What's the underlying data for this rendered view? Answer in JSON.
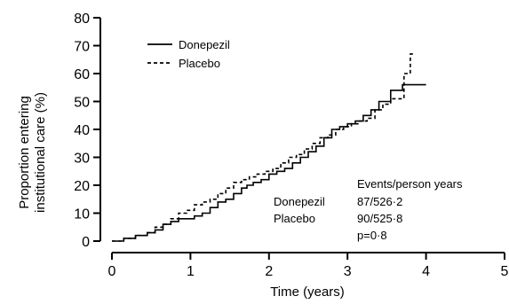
{
  "chart_data": {
    "type": "line",
    "step": true,
    "xlabel": "Time (years)",
    "ylabel_lines": [
      "Proportion entering",
      "institutional care (%)"
    ],
    "xlim": [
      0,
      5
    ],
    "ylim": [
      0,
      80
    ],
    "x_ticks": [
      0,
      1,
      2,
      3,
      4,
      5
    ],
    "y_ticks": [
      0,
      10,
      20,
      30,
      40,
      50,
      60,
      70,
      80
    ],
    "grid": false,
    "legend_position": "top-left",
    "series": [
      {
        "name": "Donepezil",
        "style": "solid",
        "color": "#000000",
        "points": [
          [
            0.0,
            0
          ],
          [
            0.15,
            1
          ],
          [
            0.3,
            2
          ],
          [
            0.45,
            3
          ],
          [
            0.55,
            4
          ],
          [
            0.65,
            6
          ],
          [
            0.75,
            7
          ],
          [
            0.85,
            8
          ],
          [
            1.0,
            8
          ],
          [
            1.05,
            9
          ],
          [
            1.15,
            10
          ],
          [
            1.25,
            12
          ],
          [
            1.35,
            14
          ],
          [
            1.45,
            15
          ],
          [
            1.55,
            17
          ],
          [
            1.65,
            19
          ],
          [
            1.72,
            20
          ],
          [
            1.8,
            21
          ],
          [
            1.9,
            22
          ],
          [
            2.0,
            24
          ],
          [
            2.1,
            25
          ],
          [
            2.2,
            26
          ],
          [
            2.3,
            28
          ],
          [
            2.4,
            30
          ],
          [
            2.5,
            32
          ],
          [
            2.6,
            34
          ],
          [
            2.7,
            37
          ],
          [
            2.8,
            40
          ],
          [
            2.9,
            41
          ],
          [
            3.0,
            42
          ],
          [
            3.1,
            43
          ],
          [
            3.2,
            45
          ],
          [
            3.3,
            47
          ],
          [
            3.4,
            50
          ],
          [
            3.55,
            54
          ],
          [
            3.7,
            56
          ],
          [
            3.85,
            56
          ],
          [
            4.0,
            56
          ]
        ]
      },
      {
        "name": "Placebo",
        "style": "dashed",
        "color": "#000000",
        "points": [
          [
            0.0,
            0
          ],
          [
            0.15,
            1
          ],
          [
            0.3,
            2
          ],
          [
            0.45,
            3
          ],
          [
            0.55,
            5
          ],
          [
            0.65,
            6
          ],
          [
            0.75,
            8
          ],
          [
            0.85,
            10
          ],
          [
            0.95,
            11
          ],
          [
            1.05,
            13
          ],
          [
            1.15,
            14
          ],
          [
            1.25,
            15
          ],
          [
            1.35,
            17
          ],
          [
            1.45,
            19
          ],
          [
            1.55,
            21
          ],
          [
            1.65,
            22
          ],
          [
            1.75,
            23
          ],
          [
            1.85,
            24
          ],
          [
            1.95,
            25
          ],
          [
            2.05,
            26
          ],
          [
            2.15,
            28
          ],
          [
            2.25,
            30
          ],
          [
            2.35,
            31
          ],
          [
            2.45,
            33
          ],
          [
            2.55,
            35
          ],
          [
            2.65,
            37
          ],
          [
            2.75,
            38
          ],
          [
            2.85,
            40
          ],
          [
            2.95,
            41
          ],
          [
            3.05,
            42
          ],
          [
            3.15,
            43
          ],
          [
            3.25,
            44
          ],
          [
            3.35,
            47
          ],
          [
            3.45,
            49
          ],
          [
            3.55,
            51
          ],
          [
            3.65,
            51
          ],
          [
            3.72,
            60
          ],
          [
            3.8,
            67
          ],
          [
            3.85,
            67
          ]
        ]
      }
    ],
    "annotation": {
      "header": "Events/person years",
      "rows": [
        {
          "label": "Donepezil",
          "value": "87/526·2"
        },
        {
          "label": "Placebo",
          "value": "90/525·8"
        }
      ],
      "p_value": "p=0·8"
    }
  }
}
